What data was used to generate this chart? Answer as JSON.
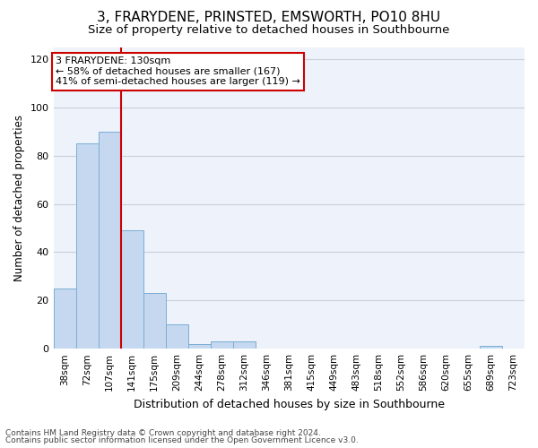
{
  "title": "3, FRARYDENE, PRINSTED, EMSWORTH, PO10 8HU",
  "subtitle": "Size of property relative to detached houses in Southbourne",
  "xlabel": "Distribution of detached houses by size in Southbourne",
  "ylabel": "Number of detached properties",
  "footer1": "Contains HM Land Registry data © Crown copyright and database right 2024.",
  "footer2": "Contains public sector information licensed under the Open Government Licence v3.0.",
  "bar_labels": [
    "38sqm",
    "72sqm",
    "107sqm",
    "141sqm",
    "175sqm",
    "209sqm",
    "244sqm",
    "278sqm",
    "312sqm",
    "346sqm",
    "381sqm",
    "415sqm",
    "449sqm",
    "483sqm",
    "518sqm",
    "552sqm",
    "586sqm",
    "620sqm",
    "655sqm",
    "689sqm",
    "723sqm"
  ],
  "bar_values": [
    25,
    85,
    90,
    49,
    23,
    10,
    2,
    3,
    3,
    0,
    0,
    0,
    0,
    0,
    0,
    0,
    0,
    0,
    0,
    1,
    0
  ],
  "bar_color": "#c5d8f0",
  "bar_edge_color": "#7aaed4",
  "annotation_line1": "3 FRARYDENE: 130sqm",
  "annotation_line2": "← 58% of detached houses are smaller (167)",
  "annotation_line3": "41% of semi-detached houses are larger (119) →",
  "red_line_x": 2.5,
  "ylim": [
    0,
    125
  ],
  "yticks": [
    0,
    20,
    40,
    60,
    80,
    100,
    120
  ],
  "grid_color": "#c8d0dc",
  "bg_color": "#eef2fa",
  "title_fontsize": 11,
  "subtitle_fontsize": 9.5,
  "axis_label_fontsize": 9,
  "tick_fontsize": 8,
  "ylabel_fontsize": 8.5,
  "footer_fontsize": 6.5
}
